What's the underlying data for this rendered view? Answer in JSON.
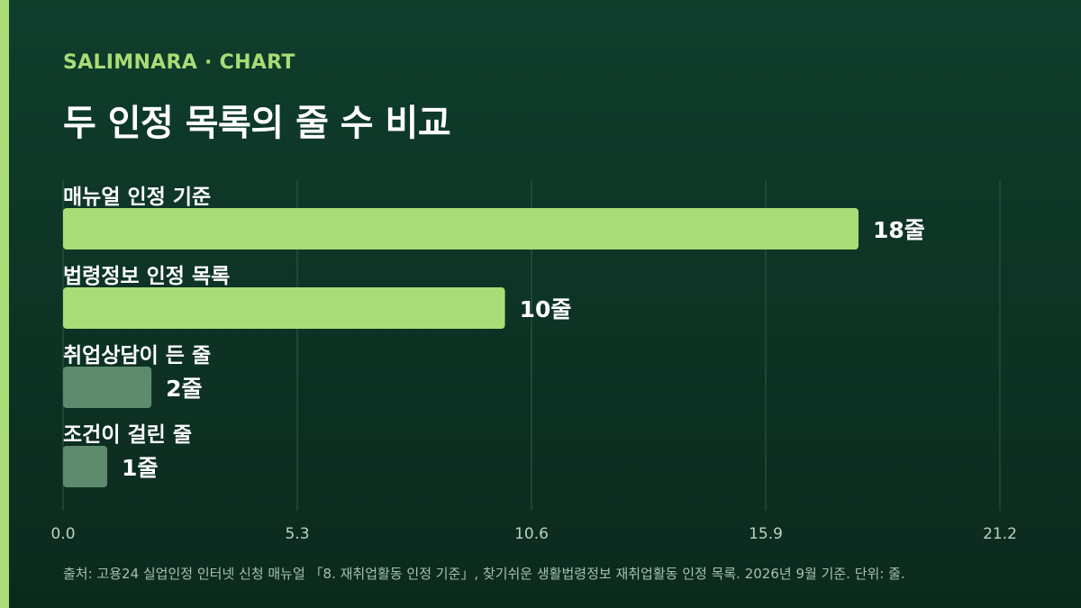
{
  "header": {
    "brand": "SALIMNARA · CHART",
    "title": "두 인정 목록의 줄 수 비교"
  },
  "chart_data": {
    "type": "bar",
    "orientation": "horizontal",
    "categories": [
      "매뉴얼 인정 기준",
      "법령정보 인정 목록",
      "취업상담이 든 줄",
      "조건이 걸린 줄"
    ],
    "values": [
      18,
      10,
      2,
      1
    ],
    "value_labels": [
      "18줄",
      "10줄",
      "2줄",
      "1줄"
    ],
    "xlim": [
      0,
      21.2
    ],
    "x_ticks": [
      "0.0",
      "5.3",
      "10.6",
      "15.9",
      "21.2"
    ],
    "grid": true,
    "colors": {
      "primary": "#a9dc76",
      "secondary": "#5e8b6e",
      "grid": "#2f5a46",
      "tick": "#b9d3c4"
    }
  },
  "footer": {
    "source": "출처: 고용24 실업인정 인터넷 신청 매뉴얼 「8. 재취업활동 인정 기준」, 찾기쉬운 생활법령정보 재취업활동 인정 목록. 2026년 9월 기준. 단위: 줄."
  }
}
